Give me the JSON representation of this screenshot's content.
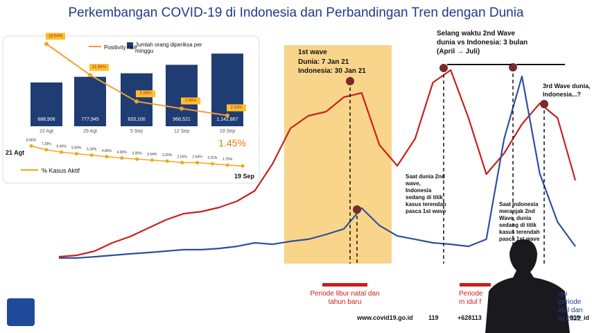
{
  "title": "Perkembangan COVID-19 di Indonesia dan Perbandingan Tren dengan Dunia",
  "chart_data": [
    {
      "type": "bar-line",
      "categories": [
        "22 Agt",
        "29 Agt",
        "5 Sep",
        "12 Sep",
        "19 Sep"
      ],
      "ylim": [
        0,
        1200000
      ],
      "y2lim": [
        0,
        20
      ],
      "series": [
        {
          "name": "Jumlah orang diperiksa per minggu",
          "color": "#1f3c73",
          "values": [
            688906,
            777945,
            833100,
            966521,
            1142867
          ],
          "value_labels": [
            "688,906",
            "777,945",
            "833,100",
            "966,521",
            "1,142,867"
          ]
        },
        {
          "name": "Positivity rate",
          "color": "#f0a030",
          "axis": "y2",
          "values": [
            18.54,
            11.54,
            5.59,
            3.98,
            2.43
          ],
          "value_labels": [
            "18.54%",
            "11.54%",
            "5.59%",
            "3.98%",
            "2.43%"
          ]
        }
      ]
    },
    {
      "type": "dot-line",
      "name": "% Kasus Aktif",
      "color": "#f0a818",
      "ylim": [
        0,
        10
      ],
      "start_label": "21 Agt",
      "end_label": "19 Sep",
      "values": [
        8.66,
        7.29,
        6.4,
        5.83,
        5.34,
        4.8,
        4.3,
        3.9,
        3.54,
        3.2,
        2.65,
        2.64,
        2.21,
        1.75,
        1.45
      ],
      "value_labels": [
        "8.66%",
        "7.29%",
        "6.40%",
        "5.83%",
        "5.34%",
        "4.80%",
        "4.30%",
        "3.90%",
        "3.54%",
        "3.20%",
        "2.65%",
        "2.64%",
        "2.21%",
        "1.75%",
        "1.45%"
      ]
    },
    {
      "type": "line",
      "ylim": [
        0,
        100
      ],
      "series": [
        {
          "color": "#c8201e",
          "values": [
            3.3,
            4,
            6,
            10,
            13,
            17,
            21,
            24,
            25,
            27,
            30,
            35,
            48,
            65,
            71,
            73,
            80,
            82,
            57,
            47,
            60,
            87,
            93,
            70,
            43,
            53,
            67,
            77,
            70,
            40
          ]
        },
        {
          "color": "#2d4f9a",
          "values": [
            2.7,
            2.7,
            3.3,
            4,
            4.7,
            5.3,
            6,
            6.7,
            6.7,
            7.3,
            8.3,
            10,
            9.3,
            10.7,
            11.7,
            14,
            16.7,
            26.7,
            18.3,
            13.3,
            11.7,
            10,
            9.3,
            8.3,
            11.7,
            60,
            90,
            43.3,
            20,
            8.3
          ]
        }
      ],
      "annotations": {
        "first_wave": "1st wave",
        "first_wave_dunia": "Dunia: 7 Jan 21",
        "first_wave_indonesia": "Indonesia: 30 Jan 21",
        "second_wave_gap": "Selang waktu 2nd Wave dunia vs Indonesia: 3 bulan (April → Juli)",
        "third_wave": "3rd Wave dunia, Indonesia...?",
        "note_world": "Saat dunia 2nd wave, Indonesia sedang di titik kasus terendah pasca 1st wave",
        "note_indonesia": "Saat Indonesia meranjak 2nd Wave, dunia sedang di titik kasus terendah pasca 1st wave",
        "period_christmas": "Periode libur natal dan tahun baru",
        "period_eid": "Periode m idul f",
        "period_next": "uju periode atal dan ru 2022"
      }
    }
  ],
  "footer": {
    "website": "www.covid19.go.id",
    "hotline": "119",
    "whatsapp": "+628113",
    "social": "819_id"
  }
}
